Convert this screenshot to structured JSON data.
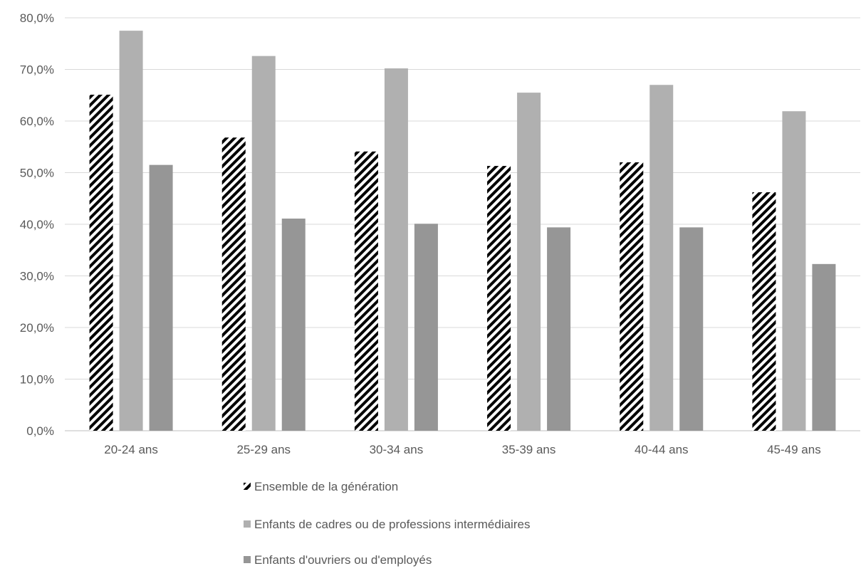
{
  "chart_data": {
    "type": "bar",
    "title": "",
    "xlabel": "",
    "ylabel": "",
    "categories": [
      "20-24 ans",
      "25-29 ans",
      "30-34 ans",
      "35-39 ans",
      "40-44 ans",
      "45-49 ans"
    ],
    "ylim": [
      0,
      80
    ],
    "yticks": [
      0,
      10,
      20,
      30,
      40,
      50,
      60,
      70,
      80
    ],
    "ytick_labels": [
      "0,0%",
      "10,0%",
      "20,0%",
      "30,0%",
      "40,0%",
      "50,0%",
      "60,0%",
      "70,0%",
      "80,0%"
    ],
    "grid": true,
    "legend_position": "bottom",
    "series": [
      {
        "name": "Ensemble de la génération",
        "values": [
          65.1,
          56.8,
          54.1,
          51.3,
          52.0,
          46.2
        ],
        "color": "#000000",
        "pattern": "diagonal-stripes"
      },
      {
        "name": "Enfants de cadres ou de professions intermédiaires",
        "values": [
          77.5,
          72.6,
          70.2,
          65.5,
          67.0,
          61.9
        ],
        "color": "#b0b0b0"
      },
      {
        "name": "Enfants d'ouvriers ou d'employés",
        "values": [
          51.5,
          41.1,
          40.1,
          39.4,
          39.4,
          32.3
        ],
        "color": "#969696"
      }
    ]
  }
}
